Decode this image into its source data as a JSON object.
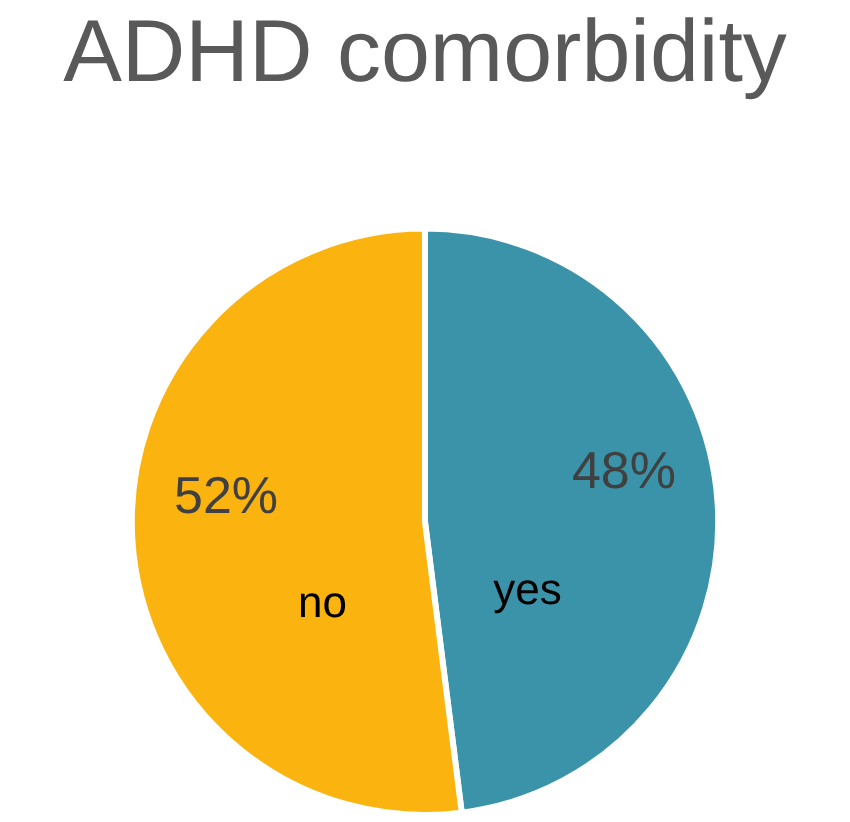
{
  "chart_data": {
    "type": "pie",
    "title": "ADHD comorbidity",
    "categories": [
      "yes",
      "no"
    ],
    "values": [
      48,
      52
    ],
    "value_labels": [
      "48%",
      "52%"
    ],
    "colors": [
      "#3a93a8",
      "#fbb40f"
    ],
    "legend": false
  }
}
